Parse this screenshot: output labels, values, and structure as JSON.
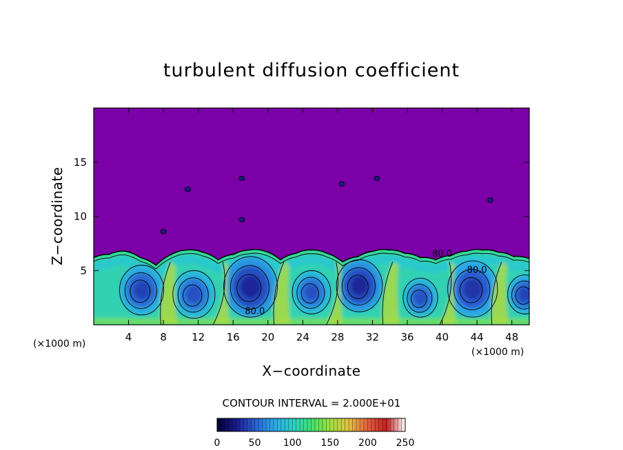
{
  "chart_data": {
    "type": "heatmap",
    "title": "turbulent diffusion coefficient",
    "xlabel": "X−coordinate",
    "ylabel": "Z−coordinate",
    "x_unit_left": "(×1000 m)",
    "x_unit_right": "(×1000 m)",
    "xlim": [
      0,
      50
    ],
    "ylim": [
      0,
      20
    ],
    "x_ticks": [
      4,
      8,
      12,
      16,
      20,
      24,
      28,
      32,
      36,
      40,
      44,
      48
    ],
    "y_ticks": [
      5,
      10,
      15
    ],
    "contour_interval_text": "CONTOUR INTERVAL = 2.000E+01",
    "contour_labels": [
      "80.0",
      "80.0",
      "80.0"
    ],
    "colorbar": {
      "min": 0,
      "max": 250,
      "ticks": [
        0,
        50,
        100,
        150,
        200,
        250
      ],
      "colors": [
        "#000033",
        "#1a1a8c",
        "#2a5ccf",
        "#2aa6e6",
        "#2ad0c8",
        "#40e070",
        "#a0e040",
        "#e0c040",
        "#e06040",
        "#c02020",
        "#ffffff"
      ]
    },
    "background_value": 0,
    "background_color": "#7b00a8",
    "boundary_layer_top_km": [
      6.2,
      6.5,
      6.8,
      6.2,
      5.5,
      6.5,
      6.9,
      6.7,
      6.0,
      6.5,
      6.9,
      6.8,
      6.0,
      6.6,
      6.9,
      6.6,
      5.8,
      6.3,
      6.8,
      6.9,
      6.6,
      6.2,
      6.0,
      6.4,
      6.8,
      6.9,
      6.7,
      6.3,
      6.1
    ],
    "eddies": [
      {
        "x": 5.5,
        "z": 3.2,
        "r": 2.3,
        "peak": 40
      },
      {
        "x": 11.5,
        "z": 2.8,
        "r": 2.2,
        "peak": 45
      },
      {
        "x": 18.0,
        "z": 3.5,
        "r": 2.8,
        "peak": 30
      },
      {
        "x": 25.0,
        "z": 3.0,
        "r": 2.0,
        "peak": 45
      },
      {
        "x": 30.5,
        "z": 3.6,
        "r": 2.4,
        "peak": 30
      },
      {
        "x": 37.5,
        "z": 2.5,
        "r": 1.8,
        "peak": 45
      },
      {
        "x": 43.5,
        "z": 3.3,
        "r": 2.6,
        "peak": 35
      },
      {
        "x": 49.5,
        "z": 2.8,
        "r": 1.8,
        "peak": 40
      }
    ],
    "isolated_patches": [
      {
        "x": 10.8,
        "z": 12.5
      },
      {
        "x": 17.0,
        "z": 13.5
      },
      {
        "x": 17.0,
        "z": 9.7
      },
      {
        "x": 8.0,
        "z": 8.6
      },
      {
        "x": 32.5,
        "z": 13.5
      },
      {
        "x": 45.5,
        "z": 11.5
      },
      {
        "x": 28.5,
        "z": 13.0
      }
    ]
  }
}
